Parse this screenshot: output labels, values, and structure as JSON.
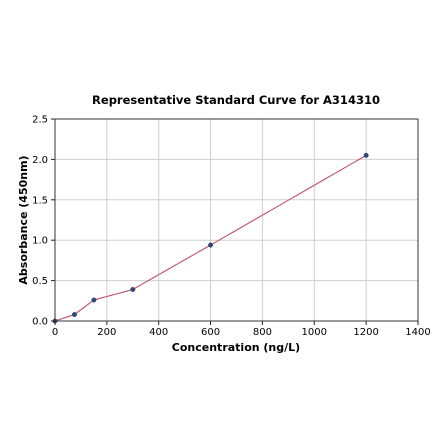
{
  "chart_data": {
    "type": "scatter",
    "title": "Representative Standard Curve for A314310",
    "xlabel": "Concentration (ng/L)",
    "ylabel": "Absorbance (450nm)",
    "xlim": [
      0,
      1400
    ],
    "ylim": [
      0,
      2.5
    ],
    "xticks": [
      0,
      200,
      400,
      600,
      800,
      1000,
      1200,
      1400
    ],
    "yticks": [
      0.0,
      0.5,
      1.0,
      1.5,
      2.0,
      2.5
    ],
    "xtick_labels": [
      "0",
      "200",
      "400",
      "600",
      "800",
      "1000",
      "1200",
      "1400"
    ],
    "ytick_labels": [
      "0.0",
      "0.5",
      "1.0",
      "1.5",
      "2.0",
      "2.5"
    ],
    "grid": true,
    "legend": "none",
    "points": [
      {
        "x": 0,
        "y": 0.0
      },
      {
        "x": 75,
        "y": 0.08
      },
      {
        "x": 150,
        "y": 0.26
      },
      {
        "x": 300,
        "y": 0.39
      },
      {
        "x": 600,
        "y": 0.94
      },
      {
        "x": 1200,
        "y": 2.05
      }
    ],
    "fit_curve": {
      "type": "line",
      "x_range": [
        0,
        1200
      ]
    },
    "colors": {
      "points": "#2f4a7a",
      "curve": "#c0506a",
      "grid": "#cfcfcf"
    }
  }
}
